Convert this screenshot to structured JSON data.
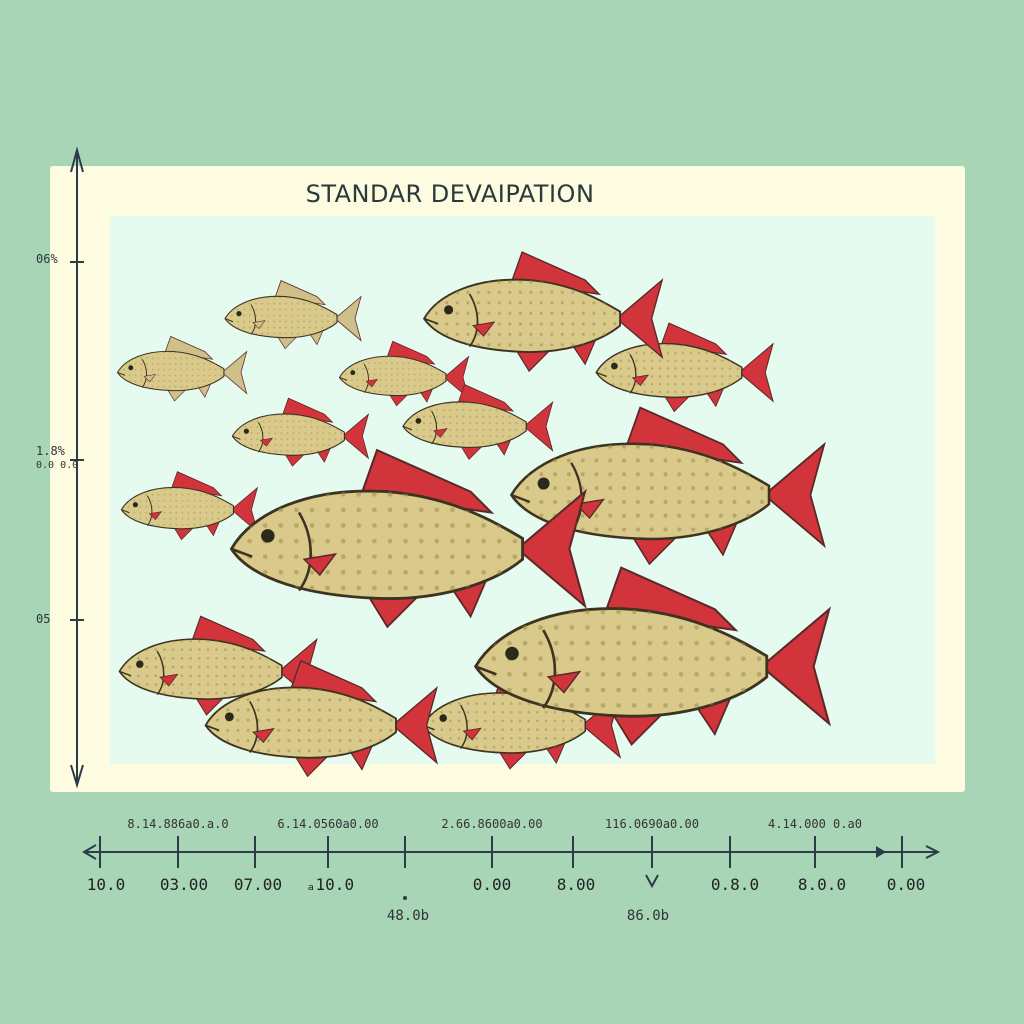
{
  "chart_data": {
    "type": "scatter",
    "title": "STANDAR DEVAIPATION",
    "xlabel": "",
    "ylabel": "",
    "grid": false,
    "y_tick_labels": [
      "06%",
      "1.8%",
      "0.0  0.0",
      "05"
    ],
    "x_tick_labels_top": [
      "8.14.886a0.a.0",
      "6.14.0560a0.00",
      "2.66.8600a0.00",
      "116.0690a0.00",
      "4.14.000 0.a0"
    ],
    "x_tick_labels_bottom": [
      "10.0",
      "03.00",
      "07.00",
      "ₐ10.0",
      "0.00",
      "8.00",
      "0.8.0",
      "8.0.0",
      "0.00"
    ],
    "x_extra_labels": [
      "48.0b",
      "86.0b"
    ],
    "series": [
      {
        "marker": "fish",
        "points": [
          {
            "x": 2.5,
            "y": 8.6,
            "size": 1.0,
            "fins": "pale"
          },
          {
            "x": 1.0,
            "y": 7.5,
            "size": 0.95,
            "fins": "pale"
          },
          {
            "x": 4.0,
            "y": 7.4,
            "size": 0.95,
            "fins": "red"
          },
          {
            "x": 5.9,
            "y": 8.6,
            "size": 1.75,
            "fins": "red"
          },
          {
            "x": 7.8,
            "y": 7.5,
            "size": 1.3,
            "fins": "red"
          },
          {
            "x": 2.6,
            "y": 6.2,
            "size": 1.0,
            "fins": "red"
          },
          {
            "x": 5.0,
            "y": 6.4,
            "size": 1.1,
            "fins": "red"
          },
          {
            "x": 1.1,
            "y": 4.7,
            "size": 1.0,
            "fins": "red"
          },
          {
            "x": 7.6,
            "y": 5.0,
            "size": 2.3,
            "fins": "red"
          },
          {
            "x": 4.1,
            "y": 3.9,
            "size": 2.6,
            "fins": "red"
          },
          {
            "x": 1.5,
            "y": 1.4,
            "size": 1.45,
            "fins": "red"
          },
          {
            "x": 7.4,
            "y": 1.5,
            "size": 2.6,
            "fins": "red"
          },
          {
            "x": 2.9,
            "y": 0.3,
            "size": 1.7,
            "fins": "red"
          },
          {
            "x": 5.6,
            "y": 0.3,
            "size": 1.45,
            "fins": "red"
          }
        ]
      }
    ],
    "xlim": [
      0,
      10
    ],
    "ylim": [
      0,
      10
    ]
  },
  "colors": {
    "background": "#a8d5b6",
    "frame": "#fdfbe0",
    "plot": "#e6fbf0",
    "fish_body": "#d9c98a",
    "fish_fin_red": "#d2343c",
    "fish_fin_pale": "#cfc08a",
    "axis": "#2b3b4a"
  }
}
